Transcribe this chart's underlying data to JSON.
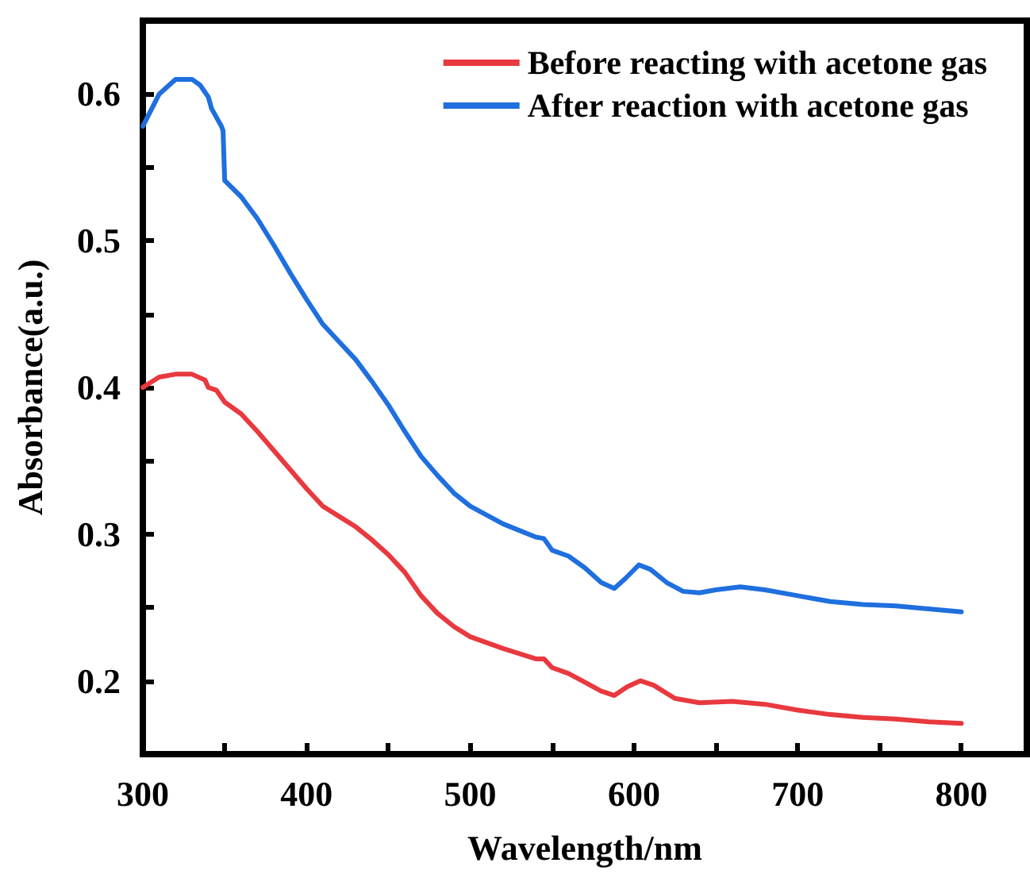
{
  "chart_data": {
    "type": "line",
    "xlabel": "Wavelength/nm",
    "ylabel": "Absorbance(a.u.)",
    "xlim": [
      300,
      840
    ],
    "xticks": [
      300,
      {
        "value": 350,
        "label": null
      },
      400,
      {
        "value": 450,
        "label": null
      },
      500,
      {
        "value": 550,
        "label": null
      },
      600,
      {
        "value": 650,
        "label": null
      },
      700,
      {
        "value": 750,
        "label": null
      },
      800
    ],
    "ylim": [
      0.15,
      0.65
    ],
    "yticks": [
      {
        "value": 0.15,
        "label": null
      },
      0.2,
      {
        "value": 0.25,
        "label": null
      },
      0.3,
      {
        "value": 0.35,
        "label": null
      },
      0.4,
      {
        "value": 0.45,
        "label": null
      },
      0.5,
      {
        "value": 0.55,
        "label": null
      },
      0.6
    ],
    "grid": false,
    "legend": "top right",
    "marker": "none",
    "line_style": "solid",
    "series": [
      {
        "name": "Before reacting with acetone gas",
        "color": "#e8393f",
        "x": [
          300,
          310,
          320,
          330,
          338,
          340,
          345,
          350,
          360,
          370,
          380,
          390,
          400,
          410,
          420,
          430,
          440,
          450,
          460,
          470,
          480,
          490,
          500,
          520,
          540,
          545,
          550,
          560,
          570,
          580,
          588,
          596,
          604,
          612,
          625,
          640,
          660,
          680,
          700,
          720,
          740,
          760,
          780,
          800
        ],
        "values": [
          0.4,
          0.407,
          0.409,
          0.409,
          0.405,
          0.4,
          0.398,
          0.39,
          0.382,
          0.37,
          0.357,
          0.344,
          0.331,
          0.319,
          0.312,
          0.305,
          0.296,
          0.286,
          0.274,
          0.258,
          0.246,
          0.237,
          0.23,
          0.222,
          0.215,
          0.215,
          0.209,
          0.205,
          0.199,
          0.193,
          0.19,
          0.196,
          0.2,
          0.197,
          0.188,
          0.185,
          0.186,
          0.184,
          0.18,
          0.177,
          0.175,
          0.174,
          0.172,
          0.171
        ]
      },
      {
        "name": "After reaction with acetone gas",
        "color": "#1f6fde",
        "x": [
          300,
          310,
          320,
          330,
          335,
          340,
          342,
          348,
          349,
          350,
          360,
          370,
          380,
          390,
          400,
          410,
          420,
          430,
          440,
          450,
          460,
          470,
          480,
          490,
          500,
          520,
          540,
          545,
          550,
          560,
          570,
          580,
          588,
          595,
          603,
          610,
          620,
          630,
          640,
          650,
          665,
          680,
          700,
          720,
          740,
          760,
          780,
          800
        ],
        "values": [
          0.578,
          0.6,
          0.61,
          0.61,
          0.606,
          0.598,
          0.59,
          0.578,
          0.575,
          0.541,
          0.53,
          0.515,
          0.497,
          0.478,
          0.46,
          0.443,
          0.431,
          0.419,
          0.404,
          0.388,
          0.37,
          0.353,
          0.34,
          0.328,
          0.319,
          0.307,
          0.298,
          0.297,
          0.289,
          0.285,
          0.277,
          0.267,
          0.263,
          0.27,
          0.279,
          0.276,
          0.267,
          0.261,
          0.26,
          0.262,
          0.264,
          0.262,
          0.258,
          0.254,
          0.252,
          0.251,
          0.249,
          0.247
        ]
      }
    ]
  }
}
